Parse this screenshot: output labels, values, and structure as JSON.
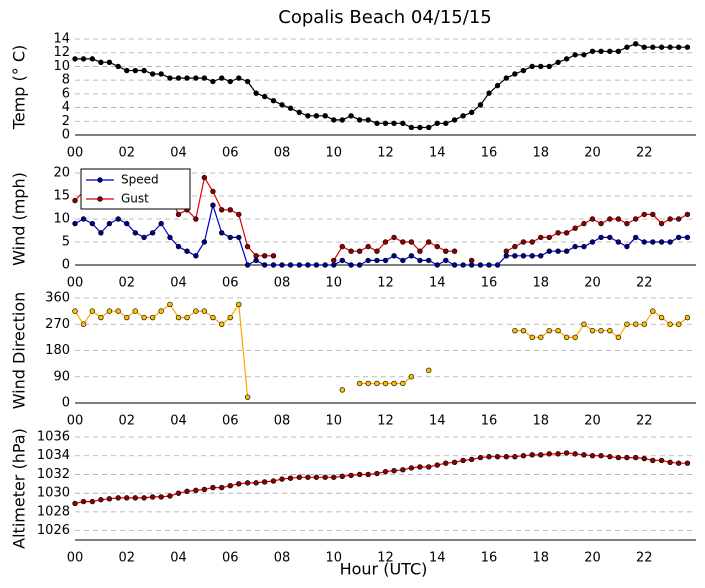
{
  "title": "Copalis Beach 04/15/15",
  "chart_data": [
    {
      "type": "line",
      "ylabel": "Temp (° C)",
      "x": [
        0,
        0.33,
        0.67,
        1,
        1.33,
        1.67,
        2,
        2.33,
        2.67,
        3,
        3.33,
        3.67,
        4,
        4.33,
        4.67,
        5,
        5.33,
        5.67,
        6,
        6.33,
        6.67,
        7,
        7.33,
        7.67,
        8,
        8.33,
        8.67,
        9,
        9.33,
        9.67,
        10,
        10.33,
        10.67,
        11,
        11.33,
        11.67,
        12,
        12.33,
        12.67,
        13,
        13.33,
        13.67,
        14,
        14.33,
        14.67,
        15,
        15.33,
        15.67,
        16,
        16.33,
        16.67,
        17,
        17.33,
        17.67,
        18,
        18.33,
        18.67,
        19,
        19.33,
        19.67,
        20,
        20.33,
        20.67,
        21,
        21.33,
        21.67,
        22,
        22.33,
        22.67,
        23,
        23.33,
        23.67
      ],
      "series": [
        {
          "color": "#000000",
          "marker_color": "#000000",
          "values": [
            11.1,
            11.1,
            11.1,
            10.6,
            10.6,
            10.0,
            9.4,
            9.4,
            9.4,
            8.9,
            8.9,
            8.3,
            8.3,
            8.3,
            8.3,
            8.3,
            7.8,
            8.3,
            7.8,
            8.3,
            7.8,
            6.1,
            5.6,
            5.0,
            4.4,
            3.9,
            3.3,
            2.8,
            2.8,
            2.8,
            2.2,
            2.2,
            2.8,
            2.2,
            2.2,
            1.7,
            1.7,
            1.7,
            1.7,
            1.1,
            1.1,
            1.1,
            1.7,
            1.7,
            2.2,
            2.8,
            3.3,
            4.4,
            6.1,
            7.2,
            8.3,
            8.9,
            9.4,
            10.0,
            10.0,
            10.0,
            10.6,
            11.1,
            11.7,
            11.7,
            12.2,
            12.2,
            12.2,
            12.2,
            12.8,
            13.3,
            12.8,
            12.8,
            12.8,
            12.8,
            12.8,
            12.8
          ]
        }
      ],
      "xlim": [
        0,
        24
      ],
      "xticks": [
        {
          "value": 0,
          "label": "00"
        },
        {
          "value": 2,
          "label": "02"
        },
        {
          "value": 4,
          "label": "04"
        },
        {
          "value": 6,
          "label": "06"
        },
        {
          "value": 8,
          "label": "08"
        },
        {
          "value": 10,
          "label": "10"
        },
        {
          "value": 12,
          "label": "12"
        },
        {
          "value": 14,
          "label": "14"
        },
        {
          "value": 16,
          "label": "16"
        },
        {
          "value": 18,
          "label": "18"
        },
        {
          "value": 20,
          "label": "20"
        },
        {
          "value": 22,
          "label": "22"
        }
      ],
      "ylim": [
        0,
        14
      ],
      "yticks": [
        0,
        2,
        4,
        6,
        8,
        10,
        12,
        14
      ],
      "grid": true
    },
    {
      "type": "line",
      "ylabel": "Wind (mph)",
      "x": [
        0,
        0.33,
        0.67,
        1,
        1.33,
        1.67,
        2,
        2.33,
        2.67,
        3,
        3.33,
        3.67,
        4,
        4.33,
        4.67,
        5,
        5.33,
        5.67,
        6,
        6.33,
        6.67,
        7,
        7.33,
        7.67,
        8,
        8.33,
        8.67,
        9,
        9.33,
        9.67,
        10,
        10.33,
        10.67,
        11,
        11.33,
        11.67,
        12,
        12.33,
        12.67,
        13,
        13.33,
        13.67,
        14,
        14.33,
        14.67,
        15,
        15.33,
        15.67,
        16,
        16.33,
        16.67,
        17,
        17.33,
        17.67,
        18,
        18.33,
        18.67,
        19,
        19.33,
        19.67,
        20,
        20.33,
        20.67,
        21,
        21.33,
        21.67,
        22,
        22.33,
        22.67,
        23,
        23.33,
        23.67
      ],
      "series": [
        {
          "name": "Speed",
          "color": "#0000cc",
          "marker_color": "#00008b",
          "values": [
            9,
            10,
            9,
            7,
            9,
            10,
            9,
            7,
            6,
            7,
            9,
            6,
            4,
            3,
            2,
            5,
            13,
            7,
            6,
            6,
            0,
            1,
            0,
            0,
            0,
            0,
            0,
            0,
            0,
            0,
            0,
            1,
            0,
            0,
            1,
            1,
            1,
            2,
            1,
            2,
            1,
            1,
            0,
            1,
            0,
            0,
            0,
            0,
            0,
            0,
            2,
            2,
            2,
            2,
            2,
            3,
            3,
            3,
            4,
            4,
            5,
            6,
            6,
            5,
            4,
            6,
            5,
            5,
            5,
            5,
            6,
            6
          ]
        },
        {
          "name": "Gust",
          "color": "#e00000",
          "marker_color": "#8b0000",
          "values": [
            14,
            16,
            15,
            14,
            15,
            14,
            14,
            13,
            13,
            14,
            14,
            15,
            11,
            12,
            10,
            19,
            16,
            12,
            12,
            11,
            4,
            2,
            2,
            2,
            null,
            null,
            null,
            null,
            null,
            null,
            1,
            4,
            3,
            3,
            4,
            3,
            5,
            6,
            5,
            5,
            3,
            5,
            4,
            3,
            3,
            null,
            1,
            null,
            null,
            null,
            3,
            4,
            5,
            5,
            6,
            6,
            7,
            7,
            8,
            9,
            10,
            9,
            10,
            10,
            9,
            10,
            11,
            11,
            9,
            10,
            10,
            11
          ]
        }
      ],
      "legend": "upper left",
      "xlim": [
        0,
        24
      ],
      "xticks": [
        {
          "value": 0,
          "label": "00"
        },
        {
          "value": 2,
          "label": "02"
        },
        {
          "value": 4,
          "label": "04"
        },
        {
          "value": 6,
          "label": "06"
        },
        {
          "value": 8,
          "label": "08"
        },
        {
          "value": 10,
          "label": "10"
        },
        {
          "value": 12,
          "label": "12"
        },
        {
          "value": 14,
          "label": "14"
        },
        {
          "value": 16,
          "label": "16"
        },
        {
          "value": 18,
          "label": "18"
        },
        {
          "value": 20,
          "label": "20"
        },
        {
          "value": 22,
          "label": "22"
        }
      ],
      "ylim": [
        0,
        20
      ],
      "yticks": [
        0,
        5,
        10,
        15,
        20
      ],
      "grid": true
    },
    {
      "type": "line",
      "ylabel": "Wind Direction",
      "x": [
        0,
        0.33,
        0.67,
        1,
        1.33,
        1.67,
        2,
        2.33,
        2.67,
        3,
        3.33,
        3.67,
        4,
        4.33,
        4.67,
        5,
        5.33,
        5.67,
        6,
        6.33,
        6.67,
        7,
        7.33,
        7.67,
        8,
        8.33,
        8.67,
        9,
        9.33,
        9.67,
        10,
        10.33,
        10.67,
        11,
        11.33,
        11.67,
        12,
        12.33,
        12.67,
        13,
        13.33,
        13.67,
        14,
        14.33,
        14.67,
        15,
        15.33,
        15.67,
        16,
        16.33,
        16.67,
        17,
        17.33,
        17.67,
        18,
        18.33,
        18.67,
        19,
        19.33,
        19.67,
        20,
        20.33,
        20.67,
        21,
        21.33,
        21.67,
        22,
        22.33,
        22.67,
        23,
        23.33,
        23.67
      ],
      "series": [
        {
          "color": "#ffa500",
          "marker_color": "#ffc000",
          "values": [
            315,
            270,
            315,
            293,
            315,
            315,
            293,
            315,
            293,
            293,
            315,
            338,
            293,
            293,
            315,
            315,
            293,
            270,
            293,
            338,
            20,
            null,
            null,
            null,
            null,
            null,
            null,
            null,
            null,
            null,
            null,
            45,
            null,
            67,
            67,
            67,
            67,
            67,
            67,
            90,
            null,
            112,
            null,
            null,
            null,
            null,
            null,
            null,
            null,
            null,
            null,
            248,
            248,
            225,
            225,
            248,
            248,
            225,
            225,
            270,
            248,
            248,
            248,
            225,
            270,
            270,
            270,
            315,
            293,
            270,
            270,
            293
          ]
        }
      ],
      "xlim": [
        0,
        24
      ],
      "xticks": [
        {
          "value": 0,
          "label": "00"
        },
        {
          "value": 2,
          "label": "02"
        },
        {
          "value": 4,
          "label": "04"
        },
        {
          "value": 6,
          "label": "06"
        },
        {
          "value": 8,
          "label": "08"
        },
        {
          "value": 10,
          "label": "10"
        },
        {
          "value": 12,
          "label": "12"
        },
        {
          "value": 14,
          "label": "14"
        },
        {
          "value": 16,
          "label": "16"
        },
        {
          "value": 18,
          "label": "18"
        },
        {
          "value": 20,
          "label": "20"
        },
        {
          "value": 22,
          "label": "22"
        }
      ],
      "ylim": [
        0,
        360
      ],
      "yticks": [
        0,
        90,
        180,
        270,
        360
      ],
      "grid": true
    },
    {
      "type": "line",
      "ylabel": "Altimeter (hPa)",
      "xlabel": "Hour (UTC)",
      "x": [
        0,
        0.33,
        0.67,
        1,
        1.33,
        1.67,
        2,
        2.33,
        2.67,
        3,
        3.33,
        3.67,
        4,
        4.33,
        4.67,
        5,
        5.33,
        5.67,
        6,
        6.33,
        6.67,
        7,
        7.33,
        7.67,
        8,
        8.33,
        8.67,
        9,
        9.33,
        9.67,
        10,
        10.33,
        10.67,
        11,
        11.33,
        11.67,
        12,
        12.33,
        12.67,
        13,
        13.33,
        13.67,
        14,
        14.33,
        14.67,
        15,
        15.33,
        15.67,
        16,
        16.33,
        16.67,
        17,
        17.33,
        17.67,
        18,
        18.33,
        18.67,
        19,
        19.33,
        19.67,
        20,
        20.33,
        20.67,
        21,
        21.33,
        21.67,
        22,
        22.33,
        22.67,
        23,
        23.33,
        23.67
      ],
      "series": [
        {
          "color": "#e00000",
          "marker_color": "#8b0000",
          "values": [
            1028.9,
            1029.1,
            1029.1,
            1029.3,
            1029.4,
            1029.5,
            1029.5,
            1029.5,
            1029.5,
            1029.6,
            1029.6,
            1029.7,
            1030.0,
            1030.2,
            1030.3,
            1030.4,
            1030.6,
            1030.6,
            1030.8,
            1031.0,
            1031.1,
            1031.1,
            1031.2,
            1031.3,
            1031.5,
            1031.6,
            1031.7,
            1031.7,
            1031.7,
            1031.7,
            1031.7,
            1031.8,
            1031.9,
            1032.0,
            1032.0,
            1032.1,
            1032.3,
            1032.4,
            1032.5,
            1032.7,
            1032.8,
            1032.8,
            1033.0,
            1033.2,
            1033.3,
            1033.5,
            1033.6,
            1033.8,
            1033.9,
            1033.9,
            1033.9,
            1033.9,
            1034.0,
            1034.1,
            1034.1,
            1034.2,
            1034.2,
            1034.3,
            1034.2,
            1034.1,
            1034.0,
            1034.0,
            1033.9,
            1033.8,
            1033.8,
            1033.8,
            1033.7,
            1033.5,
            1033.5,
            1033.3,
            1033.2,
            1033.2
          ]
        }
      ],
      "xlim": [
        0,
        24
      ],
      "xticks": [
        {
          "value": 0,
          "label": "00"
        },
        {
          "value": 2,
          "label": "02"
        },
        {
          "value": 4,
          "label": "04"
        },
        {
          "value": 6,
          "label": "06"
        },
        {
          "value": 8,
          "label": "08"
        },
        {
          "value": 10,
          "label": "10"
        },
        {
          "value": 12,
          "label": "12"
        },
        {
          "value": 14,
          "label": "14"
        },
        {
          "value": 16,
          "label": "16"
        },
        {
          "value": 18,
          "label": "18"
        },
        {
          "value": 20,
          "label": "20"
        },
        {
          "value": 22,
          "label": "22"
        }
      ],
      "ylim": [
        1025,
        1036
      ],
      "yticks": [
        1026,
        1028,
        1030,
        1032,
        1034,
        1036
      ],
      "grid": true
    }
  ]
}
